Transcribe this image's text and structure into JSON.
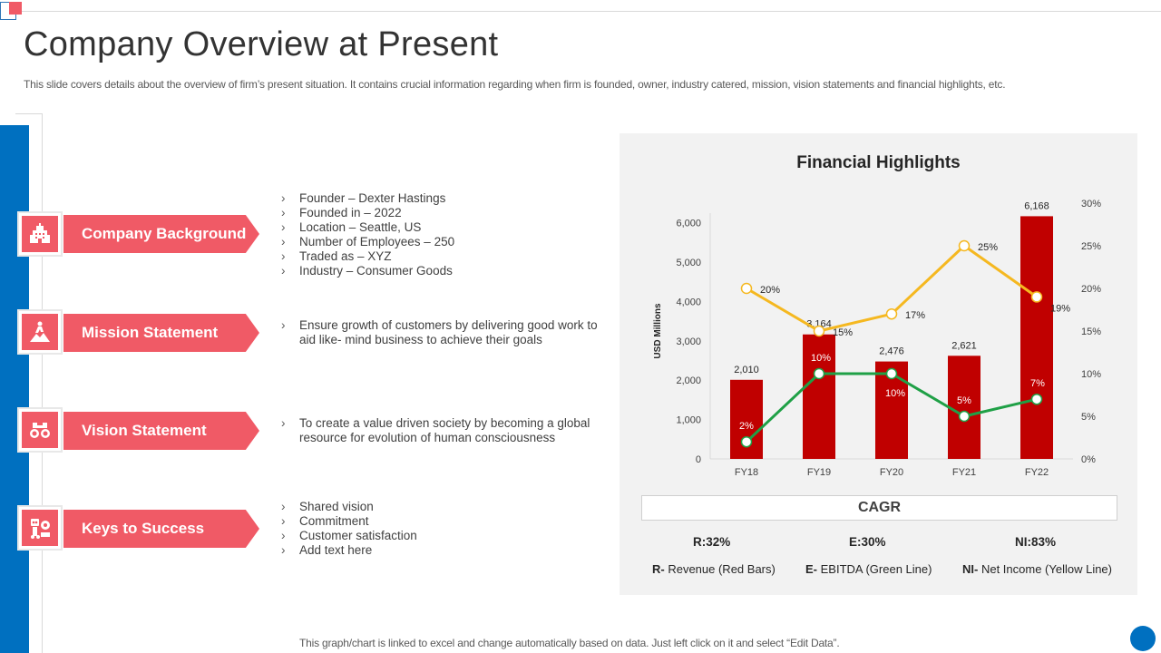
{
  "slide": {
    "title": "Company Overview at Present",
    "subtitle": "This slide covers details about the overview of firm’s present situation. It contains crucial information regarding when firm is founded, owner, industry catered, mission, vision statements and financial highlights, etc.",
    "footer": "This graph/chart is linked to excel and change automatically based on data. Just left click on it and select “Edit Data”."
  },
  "sections": [
    {
      "label": "Company Background",
      "icon": "building-icon",
      "bullets": [
        "Founder – Dexter Hastings",
        "Founded  in – 2022",
        "Location – Seattle, US",
        "Number  of Employees – 250",
        "Traded  as – XYZ",
        "Industry – Consumer  Goods"
      ]
    },
    {
      "label": "Mission Statement",
      "icon": "mountain-climber-icon",
      "bullets": [
        "Ensure growth of customers by delivering  good work to aid like- mind business to achieve their goals"
      ]
    },
    {
      "label": "Vision Statement",
      "icon": "binoculars-icon",
      "bullets": [
        "To create a value driven  society by becoming  a global resource for evolution  of human consciousness"
      ]
    },
    {
      "label": "Keys to Success",
      "icon": "robot-gear-icon",
      "bullets": [
        "Shared vision",
        "Commitment",
        "Customer satisfaction",
        "Add text here"
      ]
    }
  ],
  "colors": {
    "accent": "#f05a66",
    "blue": "#0070c0",
    "revenue": "#c00000",
    "ebitda": "#1fa046",
    "net_income": "#f5b820"
  },
  "chart_data": {
    "type": "bar",
    "title": "Financial Highlights",
    "ylabel": "USD Millions",
    "categories": [
      "FY18",
      "FY19",
      "FY20",
      "FY21",
      "FY22"
    ],
    "ylim": [
      0,
      6500
    ],
    "yticks": [
      "0",
      "1,000",
      "2,000",
      "3,000",
      "4,000",
      "5,000",
      "6,000"
    ],
    "y2lim": [
      0,
      0.3
    ],
    "y2ticks": [
      "0%",
      "5%",
      "10%",
      "15%",
      "20%",
      "25%",
      "30%"
    ],
    "series": [
      {
        "name": "Revenue",
        "kind": "bar",
        "values": [
          2010,
          3164,
          2476,
          2621,
          6168
        ],
        "labels": [
          "2,010",
          "3,164",
          "2,476",
          "2,621",
          "6,168"
        ]
      },
      {
        "name": "EBITDA",
        "kind": "line",
        "axis": "secondary",
        "values": [
          0.02,
          0.1,
          0.1,
          0.05,
          0.07
        ],
        "labels": [
          "2%",
          "10%",
          "10%",
          "5%",
          "7%"
        ]
      },
      {
        "name": "Net Income",
        "kind": "line",
        "axis": "secondary",
        "values": [
          0.2,
          0.15,
          0.17,
          0.25,
          0.19
        ],
        "labels": [
          "20%",
          "15%",
          "17%",
          "25%",
          "19%"
        ]
      }
    ]
  },
  "cagr": {
    "heading": "CAGR",
    "values": [
      "R:32%",
      "E:30%",
      "NI:83%"
    ],
    "legend": [
      {
        "key": "R-",
        "text": " Revenue (Red Bars)"
      },
      {
        "key": "E-",
        "text": " EBITDA  (Green Line)"
      },
      {
        "key": "NI-",
        "text": " Net Income (Yellow Line)"
      }
    ]
  }
}
